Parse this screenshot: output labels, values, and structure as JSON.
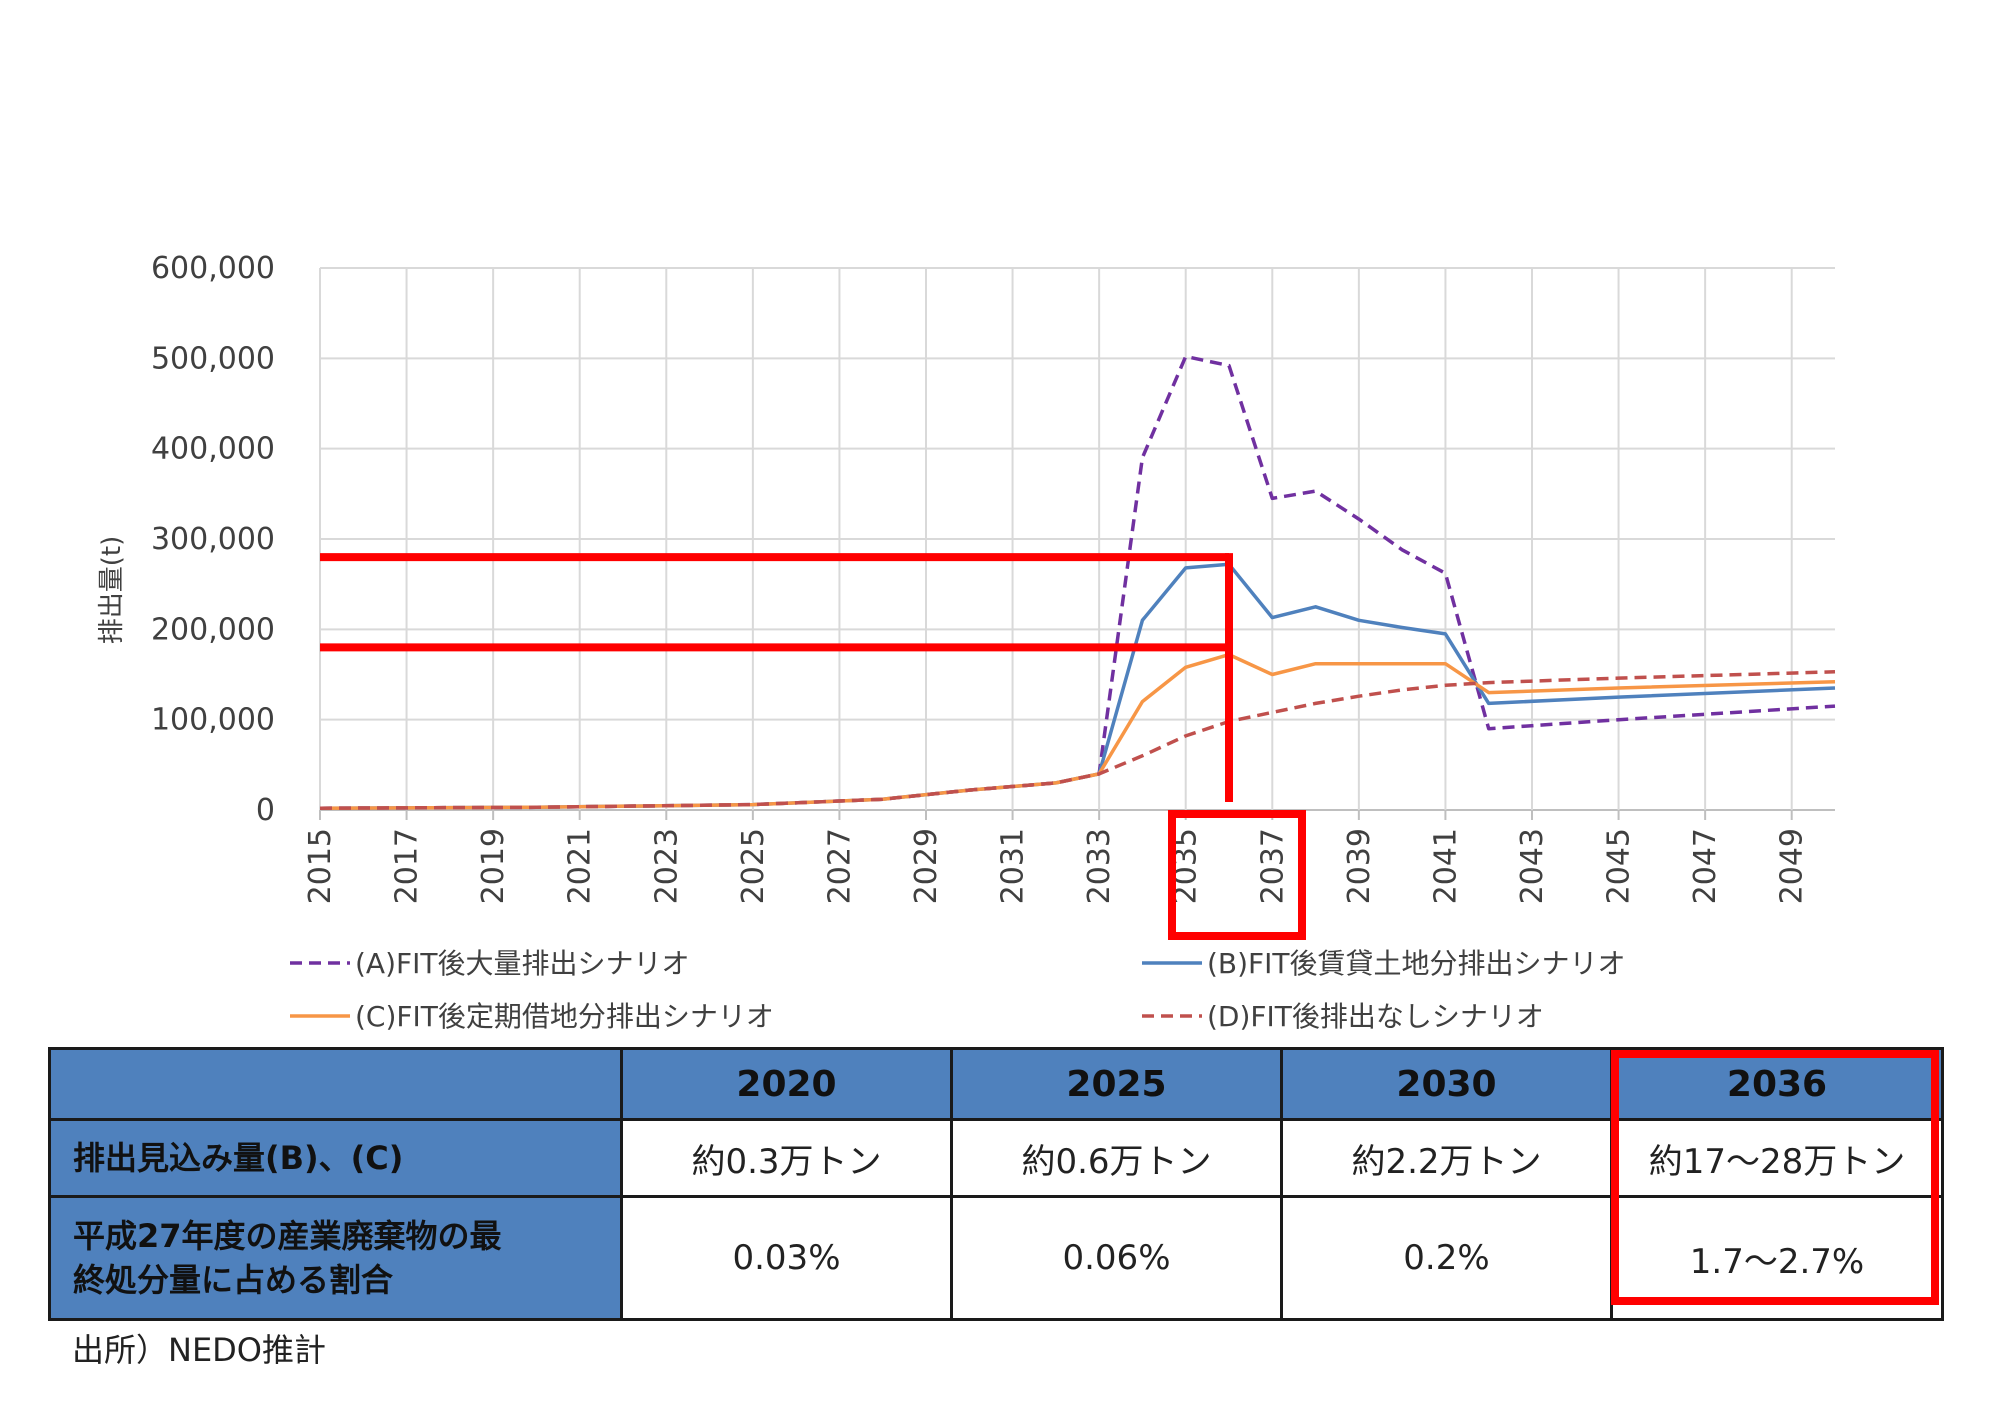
{
  "chart_data": {
    "type": "line",
    "title": "",
    "xlabel": "",
    "ylabel": "排出量(t)",
    "ylim": [
      0,
      600000
    ],
    "yticks": [
      0,
      100000,
      200000,
      300000,
      400000,
      500000,
      600000
    ],
    "ytick_labels": [
      "0",
      "100,000",
      "200,000",
      "300,000",
      "400,000",
      "500,000",
      "600,000"
    ],
    "xlim": [
      2015,
      2050
    ],
    "xticks": [
      2015,
      2017,
      2019,
      2021,
      2023,
      2025,
      2027,
      2029,
      2031,
      2033,
      2035,
      2037,
      2039,
      2041,
      2043,
      2045,
      2047,
      2049
    ],
    "xtick_labels": [
      "2015",
      "2017",
      "2019",
      "2021",
      "2023",
      "2025",
      "2027",
      "2029",
      "2031",
      "2033",
      "2035",
      "2037",
      "2039",
      "2041",
      "2043",
      "2045",
      "2047",
      "2049"
    ],
    "grid": true,
    "legend_position": "bottom",
    "series": [
      {
        "name": "(A)FIT後大量排出シナリオ",
        "color": "#7030a0",
        "dash": "dashed",
        "x": [
          2015,
          2020,
          2025,
          2028,
          2030,
          2032,
          2033,
          2034,
          2035,
          2036,
          2037,
          2038,
          2039,
          2040,
          2041,
          2042,
          2045,
          2050
        ],
        "y": [
          2000,
          3000,
          6000,
          12000,
          22000,
          30000,
          40000,
          390000,
          502000,
          492000,
          345000,
          353000,
          322000,
          288000,
          262000,
          90000,
          100000,
          115000
        ]
      },
      {
        "name": "(B)FIT後賃貸土地分排出シナリオ",
        "color": "#4f81bd",
        "dash": "solid",
        "x": [
          2015,
          2020,
          2025,
          2028,
          2030,
          2032,
          2033,
          2034,
          2035,
          2036,
          2037,
          2038,
          2039,
          2040,
          2041,
          2042,
          2045,
          2050
        ],
        "y": [
          2000,
          3000,
          6000,
          12000,
          22000,
          30000,
          40000,
          210000,
          268000,
          272000,
          213000,
          225000,
          210000,
          202000,
          195000,
          118000,
          125000,
          135000
        ]
      },
      {
        "name": "(C)FIT後定期借地分排出シナリオ",
        "color": "#f79646",
        "dash": "solid",
        "x": [
          2015,
          2020,
          2025,
          2028,
          2030,
          2032,
          2033,
          2034,
          2035,
          2036,
          2037,
          2038,
          2039,
          2040,
          2041,
          2042,
          2045,
          2050
        ],
        "y": [
          2000,
          3000,
          6000,
          12000,
          22000,
          30000,
          40000,
          120000,
          158000,
          172000,
          150000,
          162000,
          162000,
          162000,
          162000,
          130000,
          135000,
          142000
        ]
      },
      {
        "name": "(D)FIT後排出なしシナリオ",
        "color": "#c0504d",
        "dash": "dashed",
        "x": [
          2015,
          2020,
          2025,
          2028,
          2030,
          2032,
          2033,
          2034,
          2035,
          2036,
          2037,
          2038,
          2039,
          2040,
          2041,
          2042,
          2045,
          2050
        ],
        "y": [
          2000,
          3000,
          6000,
          12000,
          22000,
          30000,
          40000,
          60000,
          82000,
          98000,
          108000,
          118000,
          126000,
          133000,
          138000,
          141000,
          146000,
          153000
        ]
      }
    ],
    "highlight": {
      "year": 2036,
      "levels": [
        280000,
        180000
      ],
      "color": "#ff0000"
    }
  },
  "table": {
    "headers": [
      "",
      "2020",
      "2025",
      "2030",
      "2036"
    ],
    "rows": [
      {
        "label": "排出見込み量(B)、(C)",
        "values": [
          "約0.3万トン",
          "約0.6万トン",
          "約2.2万トン",
          "約17～28万トン"
        ]
      },
      {
        "label_line1": "平成27年度の産業廃棄物の最",
        "label_line2": "終処分量に占める割合",
        "values": [
          "0.03%",
          "0.06%",
          "0.2%",
          "1.7～2.7%"
        ]
      }
    ]
  },
  "source_note": "出所）NEDO推計"
}
